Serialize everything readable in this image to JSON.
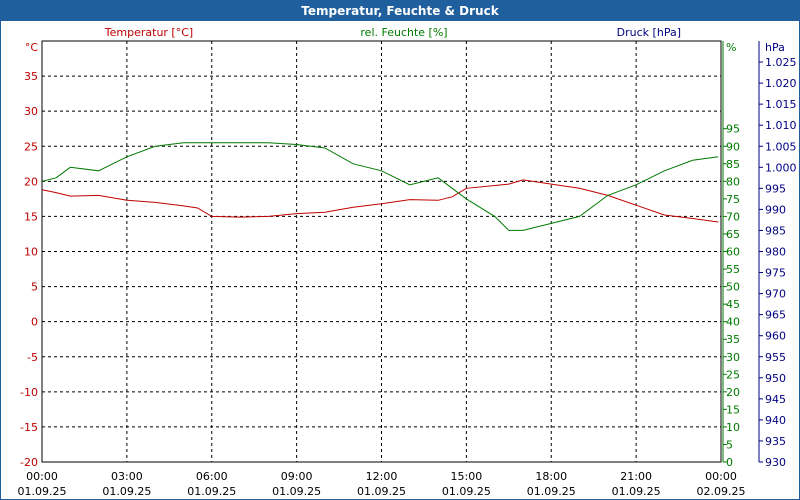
{
  "window": {
    "title": "Temperatur, Feuchte & Druck"
  },
  "chart_data": {
    "type": "line",
    "title": "Temperatur, Feuchte & Druck",
    "grid": true,
    "x_ticks": [
      {
        "h": 0,
        "time": "00:00",
        "date": "01.09.25"
      },
      {
        "h": 3,
        "time": "03:00",
        "date": "01.09.25"
      },
      {
        "h": 6,
        "time": "06:00",
        "date": "01.09.25"
      },
      {
        "h": 9,
        "time": "09:00",
        "date": "01.09.25"
      },
      {
        "h": 12,
        "time": "12:00",
        "date": "01.09.25"
      },
      {
        "h": 15,
        "time": "15:00",
        "date": "01.09.25"
      },
      {
        "h": 18,
        "time": "18:00",
        "date": "01.09.25"
      },
      {
        "h": 21,
        "time": "21:00",
        "date": "01.09.25"
      },
      {
        "h": 24,
        "time": "00:00",
        "date": "02.09.25"
      }
    ],
    "axes": {
      "temperature": {
        "label": "Temperatur [°C]",
        "unit": "°C",
        "min": -20,
        "max": 40,
        "step": 5,
        "color": "#c00000"
      },
      "humidity": {
        "label": "rel. Feuchte [%]",
        "unit": "%",
        "min": 0,
        "max": 120,
        "step": 5,
        "color": "#007a00"
      },
      "pressure": {
        "label": "Druck [hPa]",
        "unit": "hPa",
        "min": 930,
        "max": 1030,
        "step": 5,
        "color": "#000080"
      }
    },
    "series": [
      {
        "name": "Temperatur [°C]",
        "axis": "temperature",
        "color": "#c00000",
        "points": [
          [
            0,
            18.8
          ],
          [
            0.5,
            18.4
          ],
          [
            1,
            17.9
          ],
          [
            2,
            18.0
          ],
          [
            3,
            17.3
          ],
          [
            4,
            17.0
          ],
          [
            5,
            16.5
          ],
          [
            5.5,
            16.2
          ],
          [
            6,
            15.0
          ],
          [
            7,
            14.9
          ],
          [
            8,
            15.0
          ],
          [
            9,
            15.4
          ],
          [
            10,
            15.6
          ],
          [
            11,
            16.3
          ],
          [
            12,
            16.8
          ],
          [
            13,
            17.4
          ],
          [
            14,
            17.3
          ],
          [
            14.5,
            17.8
          ],
          [
            15,
            19.0
          ],
          [
            16,
            19.4
          ],
          [
            16.5,
            19.6
          ],
          [
            17,
            20.2
          ],
          [
            18,
            19.6
          ],
          [
            19,
            19.0
          ],
          [
            20,
            18.0
          ],
          [
            21,
            16.6
          ],
          [
            22,
            15.2
          ],
          [
            23,
            14.7
          ],
          [
            23.9,
            14.2
          ]
        ]
      },
      {
        "name": "rel. Feuchte [%]",
        "axis": "humidity",
        "color": "#007a00",
        "points": [
          [
            0,
            80
          ],
          [
            0.5,
            81
          ],
          [
            1,
            84
          ],
          [
            2,
            83
          ],
          [
            2.5,
            85
          ],
          [
            3,
            87
          ],
          [
            4,
            90
          ],
          [
            5,
            91
          ],
          [
            6,
            91
          ],
          [
            7,
            91
          ],
          [
            8,
            91
          ],
          [
            9,
            90.5
          ],
          [
            10,
            89.5
          ],
          [
            11,
            85
          ],
          [
            12,
            83
          ],
          [
            13,
            79
          ],
          [
            14,
            81
          ],
          [
            14.5,
            78
          ],
          [
            15,
            75
          ],
          [
            16,
            70
          ],
          [
            16.5,
            66
          ],
          [
            17,
            66
          ],
          [
            18,
            68
          ],
          [
            19,
            70
          ],
          [
            20,
            76
          ],
          [
            21,
            79
          ],
          [
            22,
            83
          ],
          [
            23,
            86
          ],
          [
            23.9,
            87
          ]
        ]
      }
    ]
  }
}
